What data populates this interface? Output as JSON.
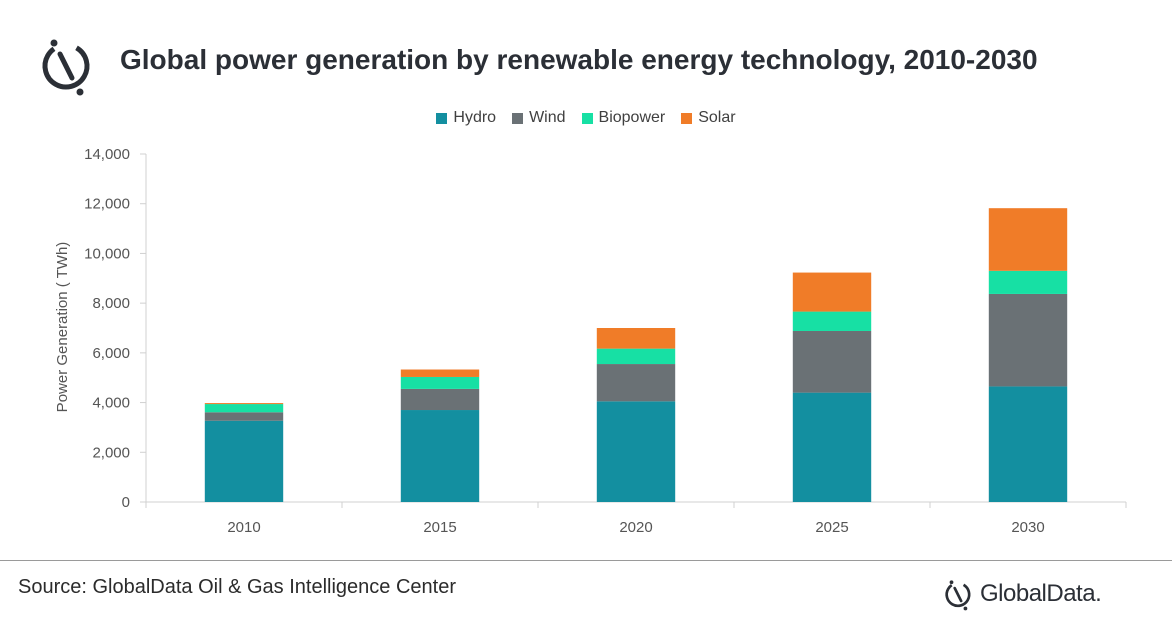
{
  "title": "Global power generation by renewable energy technology, 2010-2030",
  "source": "Source: GlobalData Oil & Gas Intelligence Center",
  "brand": "GlobalData.",
  "icons": {
    "logo": "globaldata-logo-icon",
    "brand": "globaldata-logo-icon"
  },
  "colors": {
    "Hydro": "#138fa0",
    "Wind": "#6a7175",
    "Biopower": "#17e0a4",
    "Solar": "#f07c28"
  },
  "chart_data": {
    "type": "bar",
    "stacked": true,
    "title": "Global power generation by renewable energy technology, 2010-2030",
    "xlabel": "",
    "ylabel": "Power Generation ( TWh)",
    "categories": [
      "2010",
      "2015",
      "2020",
      "2025",
      "2030"
    ],
    "series": [
      {
        "name": "Hydro",
        "values": [
          3270,
          3700,
          4050,
          4400,
          4650
        ]
      },
      {
        "name": "Wind",
        "values": [
          340,
          850,
          1500,
          2480,
          3720
        ]
      },
      {
        "name": "Biopower",
        "values": [
          330,
          480,
          620,
          780,
          930
        ]
      },
      {
        "name": "Solar",
        "values": [
          40,
          300,
          830,
          1570,
          2520
        ]
      }
    ],
    "ylim": [
      0,
      14000
    ],
    "yticks": [
      "0",
      "2,000",
      "4,000",
      "6,000",
      "8,000",
      "10,000",
      "12,000",
      "14,000"
    ],
    "ytick_values": [
      0,
      2000,
      4000,
      6000,
      8000,
      10000,
      12000,
      14000
    ],
    "legend_position": "top",
    "grid": false
  }
}
